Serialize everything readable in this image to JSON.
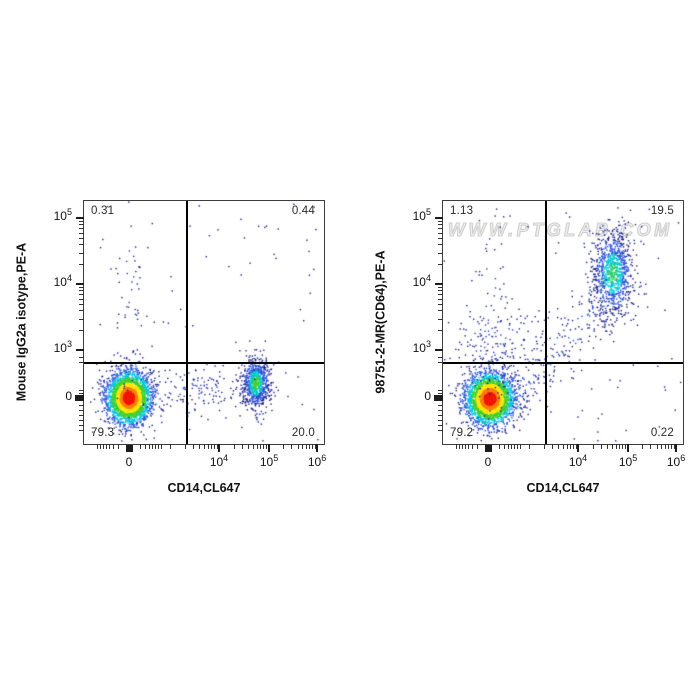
{
  "watermark": {
    "text": "WWW.PTGLAB.COM"
  },
  "colors": {
    "frame": "#3d3d3d",
    "quadrant_line": "#000000",
    "watermark_gray": "#cfcfcf"
  },
  "chart_data": {
    "type": "scatter",
    "subtype": "flow-cytometry-pseudocolor-density",
    "description": "Two flow cytometry dot plots of human PBMCs. Left: mouse IgG2a isotype control (PE) vs CD14-CL647. Right: anti-CD64 antibody 98751-2-MR (PE) vs CD14-CL647. CD14+ monocytes are CD64 positive.",
    "x_axis": {
      "label": "CD14,CL647",
      "scale": "biexponential",
      "range_hint": "~ -10^3 to 10^6",
      "ticks": [
        {
          "text": "0",
          "frac": 0.1875,
          "bold": true
        },
        {
          "base": "10",
          "exp": "4",
          "frac": 0.5625
        },
        {
          "base": "10",
          "exp": "5",
          "frac": 0.771
        },
        {
          "base": "10",
          "exp": "6",
          "frac": 0.971
        }
      ],
      "minor": [
        0.054,
        0.067,
        0.079,
        0.092,
        0.104,
        0.121,
        0.142,
        0.233,
        0.254,
        0.271,
        0.283,
        0.296,
        0.308,
        0.321,
        0.358,
        0.42,
        0.456,
        0.481,
        0.501,
        0.517,
        0.531,
        0.543,
        0.553,
        0.624,
        0.66,
        0.685,
        0.705,
        0.721,
        0.735,
        0.747,
        0.757,
        0.828,
        0.864,
        0.89,
        0.909,
        0.926,
        0.939,
        0.951,
        0.961
      ]
    },
    "y_axis": {
      "scale": "biexponential",
      "range_hint": "~ -10^2.5 to 10^5",
      "ticks": [
        {
          "base": "10",
          "exp": "5",
          "frac": 0.07
        },
        {
          "base": "10",
          "exp": "4",
          "frac": 0.342
        },
        {
          "base": "10",
          "exp": "3",
          "frac": 0.613
        },
        {
          "text": "0",
          "frac": 0.811,
          "bold": true
        }
      ],
      "minor": [
        0.082,
        0.096,
        0.112,
        0.13,
        0.152,
        0.178,
        0.212,
        0.26,
        0.354,
        0.368,
        0.384,
        0.402,
        0.423,
        0.45,
        0.484,
        0.531,
        0.642,
        0.663,
        0.778,
        0.792,
        0.839,
        0.86,
        0.881,
        0.901,
        0.922,
        0.942
      ]
    },
    "gate": {
      "x_frac": 0.43,
      "y_frac": 0.667
    },
    "ramps": {
      "jet": [
        [
          0.5,
          "#f01800"
        ],
        [
          0.8,
          "#ff7e00"
        ],
        [
          1.15,
          "#ffe400"
        ],
        [
          1.55,
          "#3ecf2f"
        ],
        [
          1.95,
          "#00c4e0"
        ],
        [
          2.55,
          "#2a52d8"
        ],
        [
          99,
          "#1b1f8a"
        ]
      ],
      "green": [
        [
          0.5,
          "#3ecf2f"
        ],
        [
          1.0,
          "#00c8c8"
        ],
        [
          1.7,
          "#2a52d8"
        ],
        [
          99,
          "#1b1f8a"
        ]
      ],
      "teal": [
        [
          0.45,
          "#2fd06a"
        ],
        [
          0.95,
          "#00c8d7"
        ],
        [
          1.6,
          "#2a52d8"
        ],
        [
          99,
          "#1b1f8a"
        ]
      ],
      "navy": [
        [
          0.9,
          "#2d3cae"
        ],
        [
          99,
          "#1b1f8a"
        ]
      ],
      "navyblue": [
        [
          0.8,
          "#2a52d8"
        ],
        [
          99,
          "#1b1f8a"
        ]
      ]
    },
    "plots": [
      {
        "id": "isotype-control",
        "ylabel": "Mouse IgG2a isotype,PE-A",
        "quadrants": {
          "top_left": "0.31",
          "top_right": "0.44",
          "bottom_left": "79.3",
          "bottom_right": "20.0"
        },
        "populations": [
          {
            "name": "negative-main",
            "type": "gauss",
            "n": 3000,
            "cx": 0.1875,
            "cy": 0.8107,
            "sx": 0.046,
            "sy": 0.0535,
            "ramp": "jet",
            "seed": 11
          },
          {
            "name": "cd14-positive",
            "type": "gauss",
            "n": 780,
            "cx": 0.7167,
            "cy": 0.749,
            "sx": 0.027,
            "sy": 0.0494,
            "ramp": "green",
            "seed": 12
          },
          {
            "name": "bridge-scatter",
            "type": "gauss",
            "n": 140,
            "cx": 0.45,
            "cy": 0.775,
            "sx": 0.14,
            "sy": 0.042,
            "ramp": "navy",
            "seed": 13
          },
          {
            "name": "vertical-strays",
            "type": "gauss",
            "n": 60,
            "cx": 0.19,
            "cy": 0.45,
            "sx": 0.033,
            "sy": 0.33,
            "ramp": "navy",
            "seed": 14
          },
          {
            "name": "sprinkle",
            "type": "uniform",
            "n": 70,
            "ramp": "navy",
            "seed": 15
          }
        ]
      },
      {
        "id": "cd64-stain",
        "ylabel": "98751-2-MR(CD64),PE-A",
        "quadrants": {
          "top_left": "1.13",
          "top_right": "19.5",
          "bottom_left": "79.2",
          "bottom_right": "0.22"
        },
        "populations": [
          {
            "name": "negative-main",
            "type": "gauss",
            "n": 3000,
            "cx": 0.196,
            "cy": 0.8148,
            "sx": 0.05,
            "sy": 0.0535,
            "ramp": "jet",
            "seed": 21
          },
          {
            "name": "cd64-cd14-positive",
            "type": "gauss",
            "n": 1000,
            "cx": 0.708,
            "cy": 0.3,
            "sx": 0.0417,
            "sy": 0.0864,
            "ramp": "teal",
            "seed": 22
          },
          {
            "name": "monocyte-smear",
            "type": "line",
            "n": 200,
            "x1": 0.3,
            "y1": 0.8,
            "x2": 0.66,
            "y2": 0.42,
            "sx": 0.05,
            "sy": 0.05,
            "ramp": "navyblue",
            "seed": 23
          },
          {
            "name": "upper-left-scatter",
            "type": "gauss",
            "n": 150,
            "cx": 0.21,
            "cy": 0.57,
            "sx": 0.1,
            "sy": 0.1,
            "ramp": "navy",
            "seed": 24
          },
          {
            "name": "vertical-strays",
            "type": "gauss",
            "n": 60,
            "cx": 0.196,
            "cy": 0.45,
            "sx": 0.04,
            "sy": 0.28,
            "ramp": "navy",
            "seed": 25
          },
          {
            "name": "sprinkle",
            "type": "uniform",
            "n": 80,
            "ramp": "navy",
            "seed": 26
          }
        ]
      }
    ]
  }
}
